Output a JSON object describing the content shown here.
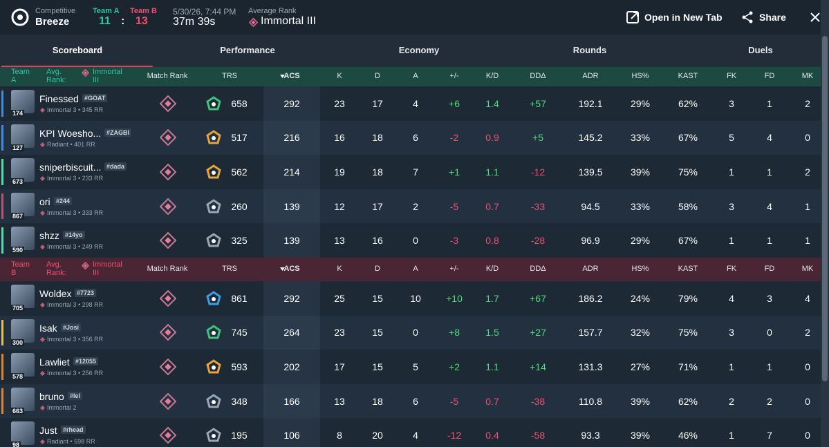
{
  "header": {
    "mode": "Competitive",
    "map": "Breeze",
    "team_a": {
      "name": "Team A",
      "score": 11
    },
    "separator": ":",
    "team_b": {
      "name": "Team B",
      "score": 13
    },
    "date": "5/30/26, 7:44 PM",
    "duration": "37m 39s",
    "avg_rank_label": "Average Rank",
    "avg_rank": "Immortal III",
    "actions": [
      "Open in New Tab",
      "Share"
    ]
  },
  "tabs": [
    "Scoreboard",
    "Performance",
    "Economy",
    "Rounds",
    "Duels"
  ],
  "columns": [
    "Match Rank",
    "TRS",
    "ACS",
    "K",
    "D",
    "A",
    "+/-",
    "K/D",
    "DDΔ",
    "ADR",
    "HS%",
    "KAST",
    "FK",
    "FD",
    "MK"
  ],
  "teams": [
    {
      "name": "Team A",
      "avg_rank_label": "Avg. Rank:",
      "avg_rank": "Immortal III",
      "players": [
        {
          "name": "Finessed",
          "tag": "#GOAT",
          "level": 174,
          "rank": "Immortal 3 • 345 RR",
          "stats": [
            658,
            292,
            23,
            17,
            4,
            "+6",
            1.4,
            "+57",
            192.1,
            "29%",
            "62%",
            3,
            1,
            2
          ]
        },
        {
          "name": "KPI Woesho...",
          "tag": "#ZAGBI",
          "level": 127,
          "rank": "Radiant • 401 RR",
          "stats": [
            517,
            216,
            16,
            18,
            6,
            "-2",
            0.9,
            "+5",
            145.2,
            "33%",
            "67%",
            5,
            4,
            0
          ]
        },
        {
          "name": "sniperbiscuit...",
          "tag": "#dada",
          "level": 673,
          "rank": "Immortal 3 • 233 RR",
          "stats": [
            562,
            214,
            19,
            18,
            7,
            "+1",
            1.1,
            "-12",
            139.5,
            "39%",
            "75%",
            1,
            1,
            2
          ]
        },
        {
          "name": "ori",
          "tag": "#244",
          "level": 867,
          "rank": "Immortal 3 • 333 RR",
          "stats": [
            260,
            139,
            12,
            17,
            2,
            "-5",
            0.7,
            "-33",
            94.5,
            "33%",
            "58%",
            3,
            4,
            1
          ]
        },
        {
          "name": "shzz",
          "tag": "#14yo",
          "level": 590,
          "rank": "Immortal 3 • 249 RR",
          "stats": [
            325,
            139,
            13,
            16,
            0,
            "-3",
            0.8,
            "-28",
            96.9,
            "29%",
            "67%",
            1,
            1,
            1
          ]
        }
      ]
    },
    {
      "name": "Team B",
      "avg_rank_label": "Avg. Rank:",
      "avg_rank": "Immortal III",
      "players": [
        {
          "name": "Woldex",
          "tag": "#7723",
          "level": 705,
          "rank": "Immortal 3 • 298 RR",
          "stats": [
            861,
            292,
            25,
            15,
            10,
            "+10",
            1.7,
            "+67",
            186.2,
            "24%",
            "79%",
            4,
            3,
            4
          ]
        },
        {
          "name": "Isak",
          "tag": "#Josi",
          "level": 300,
          "rank": "Immortal 3 • 356 RR",
          "stats": [
            745,
            264,
            23,
            15,
            0,
            "+8",
            1.5,
            "+27",
            157.7,
            "32%",
            "75%",
            3,
            0,
            2
          ]
        },
        {
          "name": "Lawliet",
          "tag": "#12055",
          "level": 578,
          "rank": "Immortal 3 • 256 RR",
          "stats": [
            593,
            202,
            17,
            15,
            5,
            "+2",
            1.1,
            "+14",
            131.3,
            "27%",
            "71%",
            1,
            1,
            0
          ]
        },
        {
          "name": "bruno",
          "tag": "#lel",
          "level": 663,
          "rank": "Immortal 2",
          "stats": [
            348,
            166,
            13,
            18,
            6,
            "-5",
            0.7,
            "-38",
            110.8,
            "39%",
            "62%",
            2,
            2,
            0
          ]
        },
        {
          "name": "Just",
          "tag": "#rhead",
          "level": 98,
          "rank": "Radiant • 598 RR",
          "stats": [
            195,
            106,
            8,
            20,
            4,
            "-12",
            0.4,
            "-58",
            93.3,
            "39%",
            "46%",
            1,
            7,
            0
          ]
        }
      ]
    }
  ]
}
